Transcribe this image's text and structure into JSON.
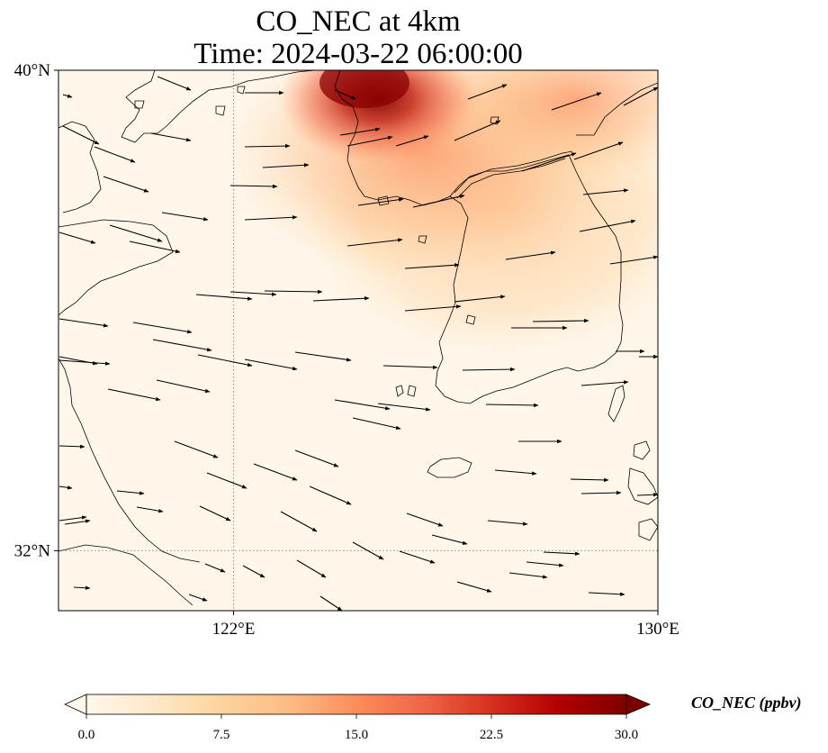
{
  "title": {
    "line1": "CO_NEC at 4km",
    "line2": "Time: 2024-03-22 06:00:00"
  },
  "map": {
    "extent_lon": [
      118.7,
      130.0
    ],
    "extent_lat": [
      31.0,
      40.0
    ],
    "lat_ticks": [
      {
        "value": 40,
        "label": "40°N"
      },
      {
        "value": 32,
        "label": "32°N"
      }
    ],
    "lon_ticks": [
      {
        "value": 122,
        "label": "122°E"
      },
      {
        "value": 130,
        "label": "130°E"
      }
    ],
    "gridlines": {
      "lon": [
        122
      ],
      "lat": [
        32
      ],
      "style": "dotted"
    },
    "field_colormap": "OrRd",
    "plume": "high CO over northern Yellow Sea / Korea Bay, peak near 124.5°E 39.8°N"
  },
  "colorbar": {
    "title": "CO_NEC (ppbv)",
    "min": 0.0,
    "max": 30.0,
    "extend": "both",
    "ticks": [
      {
        "value": 0.0,
        "label": "0.0"
      },
      {
        "value": 7.5,
        "label": "7.5"
      },
      {
        "value": 15.0,
        "label": "15.0"
      },
      {
        "value": 22.5,
        "label": "22.5"
      },
      {
        "value": 30.0,
        "label": "30.0"
      }
    ],
    "colors": [
      "#fff7ec",
      "#fee8c8",
      "#fdd49e",
      "#fdbb84",
      "#fc8d59",
      "#ef6548",
      "#d7301f",
      "#b30000",
      "#7f0000"
    ]
  },
  "colors": {
    "arrow": "#000000",
    "coastline": "#000000",
    "grid": "#808080"
  }
}
